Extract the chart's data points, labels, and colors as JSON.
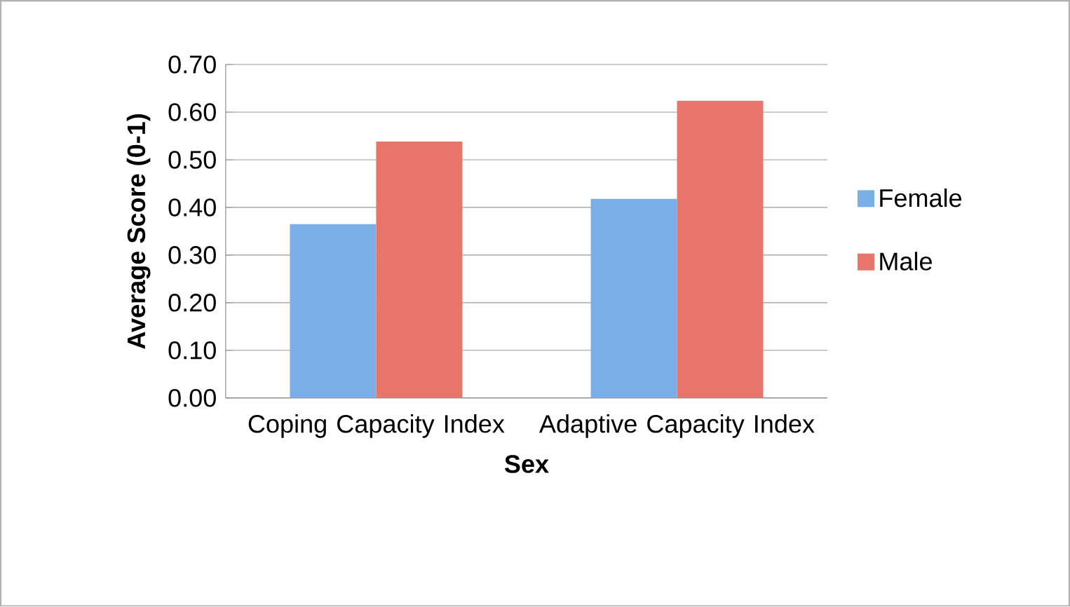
{
  "chart_data": {
    "type": "bar",
    "xlabel": "Sex",
    "ylabel": "Average Score (0-1)",
    "categories": [
      "Coping Capacity Index",
      "Adaptive Capacity Index"
    ],
    "series": [
      {
        "name": "Female",
        "color": "#7aaee8",
        "values": [
          0.365,
          0.418
        ]
      },
      {
        "name": "Male",
        "color": "#e8756a",
        "values": [
          0.538,
          0.624
        ]
      }
    ],
    "ylim": [
      0,
      0.7
    ],
    "yticks": [
      {
        "value": 0,
        "label": "0.00"
      },
      {
        "value": 0.1,
        "label": "0.10"
      },
      {
        "value": 0.2,
        "label": "0.20"
      },
      {
        "value": 0.3,
        "label": "0.30"
      },
      {
        "value": 0.4,
        "label": "0.40"
      },
      {
        "value": 0.5,
        "label": "0.50"
      },
      {
        "value": 0.6,
        "label": "0.60"
      },
      {
        "value": 0.7,
        "label": "0.70"
      }
    ],
    "grid": "y",
    "legend": "right"
  }
}
